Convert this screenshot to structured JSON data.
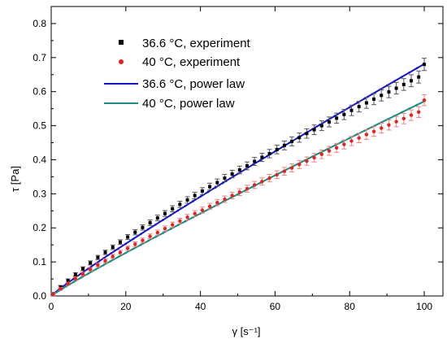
{
  "chart_data": {
    "type": "scatter",
    "xlabel": "γ [s⁻¹]",
    "ylabel": "τ [Pa]",
    "xlim": [
      0,
      105
    ],
    "ylim": [
      0,
      0.85
    ],
    "xticks": [
      0,
      20,
      40,
      60,
      80,
      100
    ],
    "yticks": [
      0.0,
      0.1,
      0.2,
      0.3,
      0.4,
      0.5,
      0.6,
      0.7,
      0.8
    ],
    "grid": false,
    "legend_position": "top-center",
    "series": [
      {
        "name": "36.6 °C, experiment",
        "kind": "points",
        "marker": "square",
        "color": "#000000",
        "error_bar_color": "#555555",
        "points": [
          [
            0.5,
            0.006
          ],
          [
            2.5,
            0.026
          ],
          [
            4.5,
            0.045
          ],
          [
            6.5,
            0.063
          ],
          [
            8.5,
            0.08
          ],
          [
            10.5,
            0.097
          ],
          [
            12.5,
            0.113
          ],
          [
            14.5,
            0.128
          ],
          [
            16.5,
            0.143
          ],
          [
            18.5,
            0.158
          ],
          [
            20.5,
            0.173
          ],
          [
            22.5,
            0.187
          ],
          [
            24.5,
            0.201
          ],
          [
            26.5,
            0.215
          ],
          [
            28.5,
            0.229
          ],
          [
            30.5,
            0.242
          ],
          [
            32.5,
            0.256
          ],
          [
            34.5,
            0.269
          ],
          [
            36.5,
            0.282
          ],
          [
            38.5,
            0.295
          ],
          [
            40.5,
            0.308
          ],
          [
            42.5,
            0.321
          ],
          [
            44.5,
            0.333
          ],
          [
            46.5,
            0.346
          ],
          [
            48.5,
            0.358
          ],
          [
            50.5,
            0.37
          ],
          [
            52.5,
            0.382
          ],
          [
            54.5,
            0.395
          ],
          [
            56.5,
            0.407
          ],
          [
            58.5,
            0.418
          ],
          [
            60.5,
            0.43
          ],
          [
            62.5,
            0.442
          ],
          [
            64.5,
            0.454
          ],
          [
            66.5,
            0.465
          ],
          [
            68.5,
            0.477
          ],
          [
            70.5,
            0.488
          ],
          [
            72.5,
            0.5
          ],
          [
            74.5,
            0.511
          ],
          [
            76.5,
            0.522
          ],
          [
            78.5,
            0.533
          ],
          [
            80.5,
            0.545
          ],
          [
            82.5,
            0.556
          ],
          [
            84.5,
            0.567
          ],
          [
            86.5,
            0.578
          ],
          [
            88.5,
            0.589
          ],
          [
            90.5,
            0.599
          ],
          [
            92.5,
            0.61
          ],
          [
            94.5,
            0.621
          ],
          [
            96.5,
            0.632
          ],
          [
            98.5,
            0.643
          ],
          [
            100,
            0.68
          ]
        ],
        "error": 0.018
      },
      {
        "name": "40 °C, experiment",
        "kind": "points",
        "marker": "circle",
        "color": "#e8201e",
        "error_bar_color": "#f08080",
        "points": [
          [
            0.5,
            0.005
          ],
          [
            2.5,
            0.021
          ],
          [
            4.5,
            0.036
          ],
          [
            6.5,
            0.051
          ],
          [
            8.5,
            0.064
          ],
          [
            10.5,
            0.078
          ],
          [
            12.5,
            0.091
          ],
          [
            14.5,
            0.103
          ],
          [
            16.5,
            0.116
          ],
          [
            18.5,
            0.128
          ],
          [
            20.5,
            0.14
          ],
          [
            22.5,
            0.152
          ],
          [
            24.5,
            0.163
          ],
          [
            26.5,
            0.175
          ],
          [
            28.5,
            0.186
          ],
          [
            30.5,
            0.198
          ],
          [
            32.5,
            0.209
          ],
          [
            34.5,
            0.22
          ],
          [
            36.5,
            0.231
          ],
          [
            38.5,
            0.242
          ],
          [
            40.5,
            0.252
          ],
          [
            42.5,
            0.263
          ],
          [
            44.5,
            0.274
          ],
          [
            46.5,
            0.284
          ],
          [
            48.5,
            0.295
          ],
          [
            50.5,
            0.305
          ],
          [
            52.5,
            0.315
          ],
          [
            54.5,
            0.326
          ],
          [
            56.5,
            0.336
          ],
          [
            58.5,
            0.346
          ],
          [
            60.5,
            0.356
          ],
          [
            62.5,
            0.366
          ],
          [
            64.5,
            0.376
          ],
          [
            66.5,
            0.386
          ],
          [
            68.5,
            0.396
          ],
          [
            70.5,
            0.406
          ],
          [
            72.5,
            0.416
          ],
          [
            74.5,
            0.426
          ],
          [
            76.5,
            0.435
          ],
          [
            78.5,
            0.445
          ],
          [
            80.5,
            0.455
          ],
          [
            82.5,
            0.464
          ],
          [
            84.5,
            0.474
          ],
          [
            86.5,
            0.483
          ],
          [
            88.5,
            0.493
          ],
          [
            90.5,
            0.502
          ],
          [
            92.5,
            0.512
          ],
          [
            94.5,
            0.521
          ],
          [
            96.5,
            0.531
          ],
          [
            98.5,
            0.54
          ],
          [
            100,
            0.575
          ]
        ],
        "error": 0.016
      },
      {
        "name": "36.6 °C, power law",
        "kind": "line",
        "color": "#1515c8",
        "a": 0.00958,
        "n": 0.926
      },
      {
        "name": "40 °C, power law",
        "kind": "line",
        "color": "#1a8c80",
        "a": 0.00764,
        "n": 0.937
      }
    ]
  }
}
